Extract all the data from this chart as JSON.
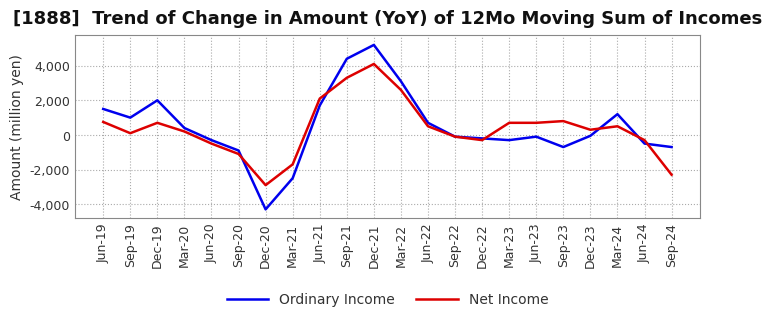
{
  "title": "[1888]  Trend of Change in Amount (YoY) of 12Mo Moving Sum of Incomes",
  "ylabel": "Amount (million yen)",
  "ylim": [
    -4800,
    5800
  ],
  "yticks": [
    -4000,
    -2000,
    0,
    2000,
    4000
  ],
  "background_color": "#ffffff",
  "grid_color": "#aaaaaa",
  "dates": [
    "Jun-19",
    "Sep-19",
    "Dec-19",
    "Mar-20",
    "Jun-20",
    "Sep-20",
    "Dec-20",
    "Mar-21",
    "Jun-21",
    "Sep-21",
    "Dec-21",
    "Mar-22",
    "Jun-22",
    "Sep-22",
    "Dec-22",
    "Mar-23",
    "Jun-23",
    "Sep-23",
    "Dec-23",
    "Mar-24",
    "Jun-24",
    "Sep-24"
  ],
  "ordinary_income": [
    1500,
    1000,
    2000,
    400,
    -300,
    -900,
    -4300,
    -2500,
    1700,
    4400,
    5200,
    3100,
    700,
    -100,
    -200,
    -300,
    -100,
    -700,
    -50,
    1200,
    -500,
    -700
  ],
  "net_income": [
    750,
    100,
    700,
    200,
    -500,
    -1100,
    -2900,
    -1700,
    2100,
    3300,
    4100,
    2600,
    500,
    -100,
    -300,
    700,
    700,
    800,
    300,
    500,
    -300,
    -2300
  ],
  "ordinary_income_color": "#0000ee",
  "net_income_color": "#dd0000",
  "line_width": 1.8,
  "title_fontsize": 13,
  "axis_fontsize": 10,
  "tick_fontsize": 9,
  "legend_fontsize": 10
}
